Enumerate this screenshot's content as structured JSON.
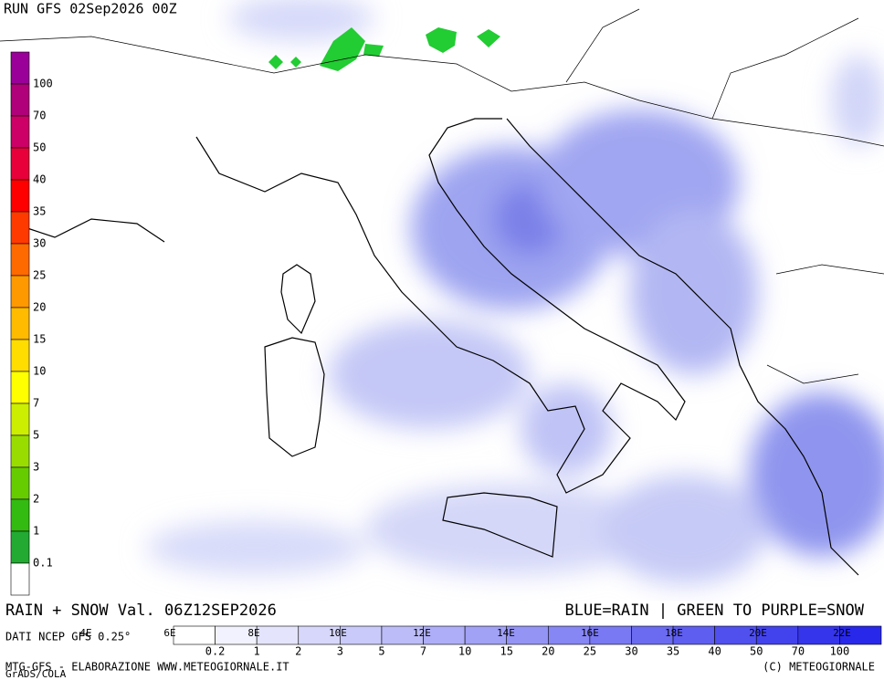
{
  "header": {
    "run": "RUN GFS 02Sep2026 00Z"
  },
  "snow_legend": {
    "labels": [
      "100",
      "70",
      "50",
      "40",
      "35",
      "30",
      "25",
      "20",
      "15",
      "10",
      "7",
      "5",
      "3",
      "2",
      "1",
      "0.1"
    ]
  },
  "footer": {
    "title": "RAIN + SNOW Val. 06Z12SEP2026",
    "key": "BLUE=RAIN | GREEN TO PURPLE=SNOW",
    "source": "DATI NCEP GFS 0.25°",
    "credit": "MTG-GFS - ELABORAZIONE WWW.METEOGIORNALE.IT",
    "copyright": "(C) METEOGIORNALE",
    "grads": "GrADS/COLA"
  },
  "lon_labels": [
    "4E",
    "6E",
    "8E",
    "10E",
    "12E",
    "14E",
    "16E",
    "18E",
    "20E",
    "22E"
  ],
  "rain_legend": {
    "labels": [
      "0.2",
      "1",
      "2",
      "3",
      "5",
      "7",
      "10",
      "15",
      "20",
      "25",
      "30",
      "35",
      "40",
      "50",
      "70",
      "100"
    ]
  }
}
